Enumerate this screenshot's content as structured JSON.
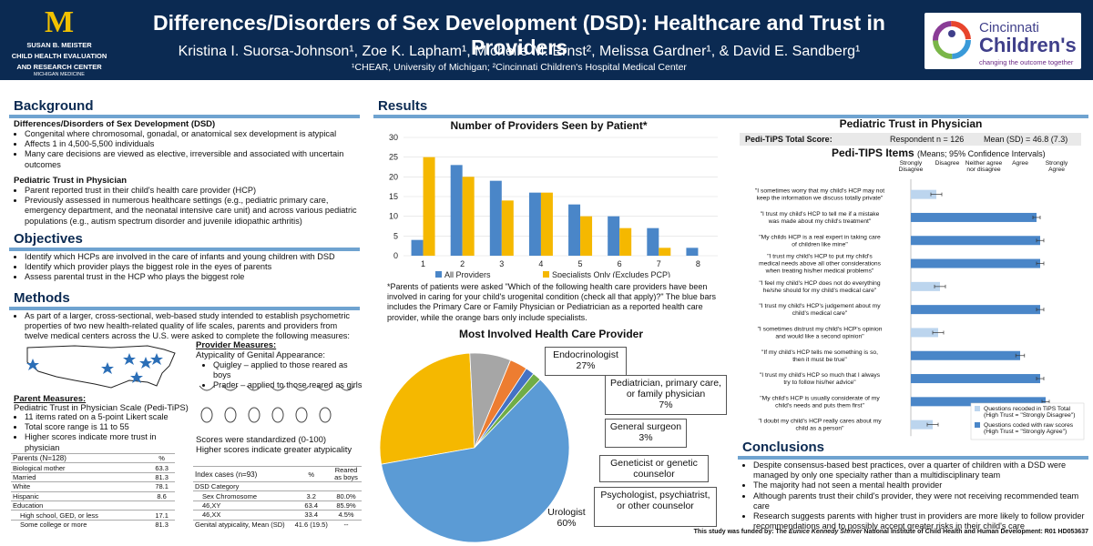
{
  "header": {
    "logo_m": "M",
    "logo_line1": "SUSAN B. MEISTER",
    "logo_line2": "CHILD HEALTH EVALUATION",
    "logo_line3": "AND RESEARCH CENTER",
    "logo_line4": "MICHIGAN MEDICINE",
    "title": "Differences/Disorders of Sex Development (DSD): Healthcare and Trust in Providers",
    "authors": "Kristina I. Suorsa-Johnson¹, Zoe K. Lapham¹, Michelle M. Ernst², Melissa Gardner¹, & David E. Sandberg¹",
    "affiliations": "¹CHEAR, University of Michigan; ²Cincinnati Children's Hospital Medical Center",
    "cc_line1": "Cincinnati",
    "cc_line2": "Children's",
    "cc_tagline": "changing the outcome together"
  },
  "background": {
    "heading": "Background",
    "sub1": "Differences/Disorders of Sex Development (DSD)",
    "bullets1": [
      "Congenital where chromosomal, gonadal, or anatomical sex development is atypical",
      "Affects 1 in 4,500-5,500 individuals",
      "Many care decisions are viewed as elective, irreversible and associated with uncertain outcomes"
    ],
    "sub2": "Pediatric Trust in Physician",
    "bullets2": [
      "Parent reported trust in their child's health care provider (HCP)",
      "Previously assessed in numerous healthcare settings (e.g., pediatric primary care, emergency department, and the neonatal intensive care unit) and across various pediatric populations (e.g., autism spectrum disorder and juvenile idiopathic arthritis)"
    ]
  },
  "objectives": {
    "heading": "Objectives",
    "bullets": [
      "Identify which HCPs are involved in the care of infants and young children with DSD",
      "Identify which provider plays the biggest role in the eyes of parents",
      "Assess parental trust in the HCP who plays the biggest role"
    ]
  },
  "methods": {
    "heading": "Methods",
    "bullets": [
      "As part of a larger, cross-sectional, web-based study intended to establish psychometric properties of two new health-related quality of life scales, parents and providers from twelve medical centers across the U.S. were asked to complete the following measures:"
    ],
    "provider_heading": "Provider Measures:",
    "provider_sub": "Atypicality of Genital Appearance:",
    "provider_bullets": [
      "Quigley – applied to those reared as boys",
      "Prader – applied to those reared as girls"
    ],
    "scores_line1": "Scores were standardized (0-100)",
    "scores_line2": "Higher scores indicate greater atypicality",
    "parent_heading": "Parent Measures:",
    "parent_sub": "Pediatric Trust in Physician Scale (Pedi-TiPS)",
    "parent_bullets": [
      "11 items rated on a 5-point Likert scale",
      "Total score range is 11 to 55",
      "Higher scores indicate more trust in physician"
    ]
  },
  "parents_table": {
    "header": [
      "Parents (N=128)",
      "%"
    ],
    "rows": [
      [
        "Biological mother",
        "63.3"
      ],
      [
        "Married",
        "81.3"
      ],
      [
        "White",
        "78.1"
      ],
      [
        "Hispanic",
        "8.6"
      ],
      [
        "Education",
        ""
      ],
      [
        "High school, GED, or less",
        "17.1"
      ],
      [
        "Some college or more",
        "81.3"
      ]
    ]
  },
  "index_table": {
    "header": [
      "Index cases (n=93)",
      "%",
      "Reared as boys"
    ],
    "rows": [
      [
        "DSD Category",
        "",
        ""
      ],
      [
        "Sex Chromosome",
        "3.2",
        "80.0%"
      ],
      [
        "46,XY",
        "63.4",
        "85.9%"
      ],
      [
        "46,XX",
        "33.4",
        "4.5%"
      ],
      [
        "Genital atypicality, Mean (SD)",
        "41.6 (19.5)",
        "--"
      ]
    ]
  },
  "results": {
    "heading": "Results",
    "note": "*Parents of patients were asked \"Which of the following health care providers have been involved in caring for your child's urogenital condition (check all that apply)?\" The blue bars includes the Primary Care or Family Physician or Pediatrician as a reported health care provider, while the orange bars only include specialists."
  },
  "chart_data": [
    {
      "type": "bar",
      "title": "Number of Providers Seen by Patient*",
      "categories": [
        "1",
        "2",
        "3",
        "4",
        "5",
        "6",
        "7",
        "8"
      ],
      "series": [
        {
          "name": "All Providers",
          "color": "#4a86c8",
          "values": [
            4,
            23,
            19,
            16,
            13,
            10,
            7,
            2
          ]
        },
        {
          "name": "Specialists Only (Excludes PCP)",
          "color": "#f5b800",
          "values": [
            25,
            20,
            14,
            16,
            10,
            7,
            2,
            0
          ]
        }
      ],
      "yticks": [
        "0",
        "5",
        "10",
        "15",
        "20",
        "25",
        "30"
      ],
      "ylim": [
        0,
        30
      ],
      "legend": "bottom"
    },
    {
      "type": "pie",
      "title": "Most Involved Health Care Provider",
      "labels": [
        "Endocrinologist",
        "Pediatrician, primary care, or family physician",
        "General surgeon",
        "Geneticist or genetic counselor",
        "Psychologist, psychiatrist, or other counselor",
        "Urologist"
      ],
      "values": [
        27,
        7,
        3,
        1.5,
        1.5,
        60
      ],
      "value_labels": [
        "27%",
        "7%",
        "3%",
        "",
        "",
        "60%"
      ],
      "colors": [
        "#f5b800",
        "#a6a6a6",
        "#ed7d31",
        "#4472c4",
        "#70ad47",
        "#5b9bd5"
      ]
    },
    {
      "type": "bar",
      "orientation": "horizontal",
      "title": "Pediatric Trust in Physician",
      "subtitle": "Pedi-TIPS Items",
      "subtitle_note": "(Means; 95% Confidence Intervals)",
      "total_label": "Pedi-TiPS Total Score:",
      "respondent": "Respondent n = 126",
      "mean": "Mean (SD) = 46.8 (7.3)",
      "scale_labels": [
        "Strongly Disagree",
        "Disagree",
        "Neither agree nor disagree",
        "Agree",
        "Strongly Agree"
      ],
      "xlim": [
        1,
        5
      ],
      "categories": [
        "\"I sometimes worry that my child's HCP may not keep the information we discuss totally private\"",
        "\"I trust my child's HCP to tell me if a mistake was made about my child's treatment\"",
        "\"My childs HCP is a real expert in taking care of children like mine\"",
        "\"I trust my child's HCP to put my child's medical needs above all other considerations when treating his/her medical problems\"",
        "\"I feel my child's HCP does not do everything he/she should for my child's medical care\"",
        "\"I trust my child's HCP's judgement about my child's medical care\"",
        "\"I sometimes distrust my child's HCP's opinion and would like a second opinion\"",
        "\"If my child's HCP tells me something is so, then it must be true\"",
        "\"I trust my child's HCP so much that I always try to follow his/her advice\"",
        "\"My child's HCP is usually considerate of my child's needs and puts them first\"",
        "\"I doubt my child's HCP really cares about my child as a person\""
      ],
      "values": [
        1.7,
        4.45,
        4.55,
        4.55,
        1.8,
        4.55,
        1.75,
        4.0,
        4.55,
        4.7,
        1.6
      ],
      "ci": [
        0.15,
        0.1,
        0.1,
        0.1,
        0.15,
        0.1,
        0.15,
        0.12,
        0.1,
        0.1,
        0.15
      ],
      "recoded": [
        true,
        false,
        false,
        false,
        true,
        false,
        true,
        false,
        false,
        false,
        true
      ],
      "legend": [
        "Questions recoded in TiPS Total (High Trust = \"Strongly Disagree\")",
        "Questions coded with raw scores (High Trust = \"Strongly Agree\")"
      ],
      "colors": [
        "#bcd5ee",
        "#4a86c8"
      ]
    }
  ],
  "conclusions": {
    "heading": "Conclusions",
    "bullets": [
      "Despite consensus-based best practices, over a quarter of children with a DSD were managed by only one specialty rather than a multidisciplinary team",
      "The majority had not seen a mental health provider",
      "Although parents trust their child's provider, they were not receiving recommended team care",
      "Research suggests parents with higher trust in providers are more likely to follow provider recommendations and to possibly accept greater risks in their child's care"
    ]
  },
  "funding_prefix": "This study was funded by: The",
  "funding_italic": "Eunice Kennedy Shriver",
  "funding_suffix": "National Institute of Child Health and Human Development: R01 HD053637"
}
